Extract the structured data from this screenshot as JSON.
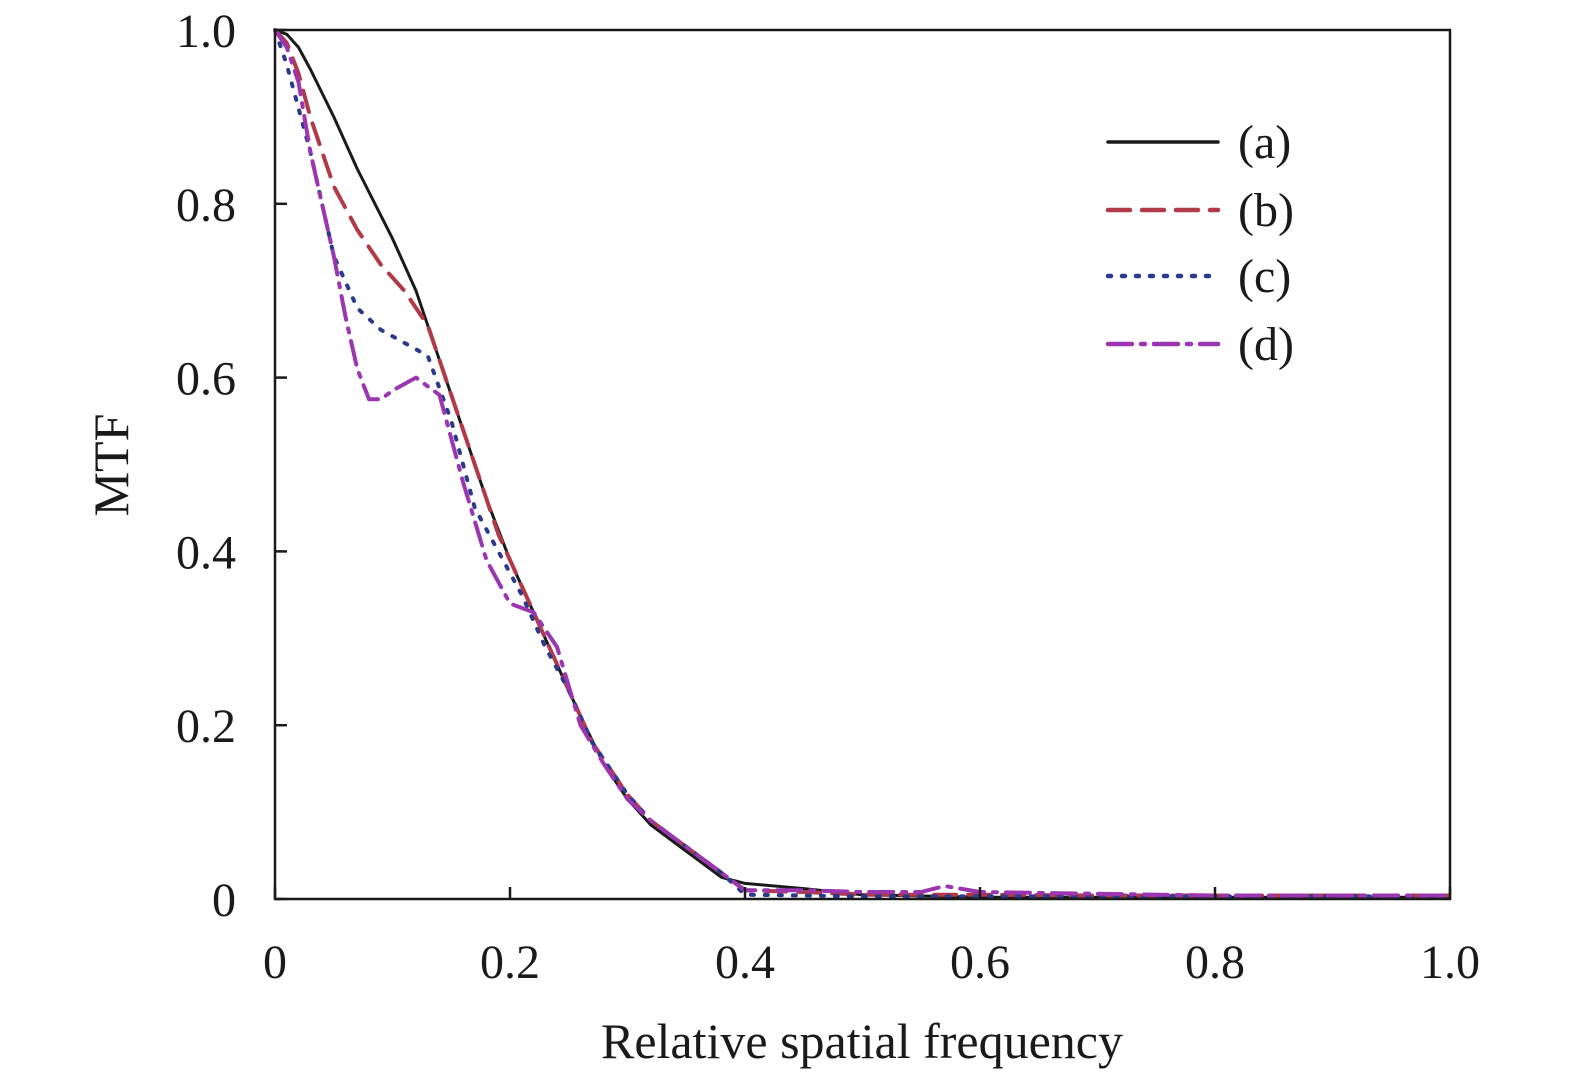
{
  "chart_data": {
    "type": "line",
    "xlabel": "Relative spatial frequency",
    "ylabel": "MTF",
    "xlim": [
      0,
      1.0
    ],
    "ylim": [
      0,
      1.0
    ],
    "xticks": [
      0,
      0.2,
      0.4,
      0.6,
      0.8,
      1.0
    ],
    "xtick_labels": [
      "0",
      "0.2",
      "0.4",
      "0.6",
      "0.8",
      "1.0"
    ],
    "yticks": [
      0,
      0.2,
      0.4,
      0.6,
      0.8,
      1.0
    ],
    "ytick_labels": [
      "0",
      "0.2",
      "0.4",
      "0.6",
      "0.8",
      "1.0"
    ],
    "grid": false,
    "legend_position": "top-right",
    "series": [
      {
        "name": "(a)",
        "color": "#1a1a1a",
        "style": "solid",
        "x": [
          0,
          0.01,
          0.02,
          0.03,
          0.05,
          0.07,
          0.1,
          0.12,
          0.14,
          0.16,
          0.18,
          0.2,
          0.22,
          0.24,
          0.26,
          0.28,
          0.3,
          0.32,
          0.34,
          0.36,
          0.38,
          0.4,
          0.45,
          0.5,
          0.6,
          0.7,
          0.8,
          0.9,
          1.0
        ],
        "y": [
          1.0,
          0.995,
          0.98,
          0.955,
          0.9,
          0.84,
          0.76,
          0.7,
          0.62,
          0.54,
          0.46,
          0.39,
          0.33,
          0.27,
          0.21,
          0.155,
          0.115,
          0.085,
          0.065,
          0.045,
          0.025,
          0.018,
          0.012,
          0.005,
          0.002,
          0.002,
          0.002,
          0.002,
          0.002
        ]
      },
      {
        "name": "(b)",
        "color": "#b03a48",
        "style": "dashed",
        "x": [
          0,
          0.01,
          0.02,
          0.03,
          0.05,
          0.07,
          0.09,
          0.11,
          0.13,
          0.15,
          0.17,
          0.19,
          0.21,
          0.23,
          0.25,
          0.27,
          0.3,
          0.32,
          0.34,
          0.36,
          0.38,
          0.4,
          0.45,
          0.5,
          0.6,
          0.7,
          0.8,
          0.9,
          1.0
        ],
        "y": [
          1.0,
          0.985,
          0.95,
          0.9,
          0.82,
          0.77,
          0.73,
          0.7,
          0.66,
          0.58,
          0.5,
          0.42,
          0.36,
          0.3,
          0.24,
          0.18,
          0.12,
          0.09,
          0.07,
          0.05,
          0.03,
          0.01,
          0.008,
          0.005,
          0.005,
          0.004,
          0.004,
          0.004,
          0.004
        ]
      },
      {
        "name": "(c)",
        "color": "#2b3a8c",
        "style": "dotted",
        "x": [
          0,
          0.01,
          0.02,
          0.03,
          0.05,
          0.07,
          0.09,
          0.11,
          0.13,
          0.15,
          0.17,
          0.19,
          0.21,
          0.23,
          0.25,
          0.27,
          0.3,
          0.32,
          0.34,
          0.36,
          0.38,
          0.4,
          0.45,
          0.5,
          0.6,
          0.7,
          0.8,
          0.9,
          1.0
        ],
        "y": [
          1.0,
          0.96,
          0.91,
          0.86,
          0.74,
          0.68,
          0.655,
          0.64,
          0.625,
          0.55,
          0.45,
          0.4,
          0.35,
          0.29,
          0.24,
          0.18,
          0.12,
          0.09,
          0.07,
          0.05,
          0.03,
          0.005,
          0.004,
          0.003,
          0.003,
          0.003,
          0.003,
          0.003,
          0.003
        ]
      },
      {
        "name": "(d)",
        "color": "#9b35b0",
        "style": "dashdot",
        "x": [
          0,
          0.01,
          0.02,
          0.03,
          0.04,
          0.05,
          0.06,
          0.07,
          0.08,
          0.09,
          0.1,
          0.12,
          0.14,
          0.16,
          0.18,
          0.2,
          0.22,
          0.24,
          0.26,
          0.28,
          0.3,
          0.32,
          0.34,
          0.36,
          0.38,
          0.4,
          0.45,
          0.5,
          0.55,
          0.57,
          0.6,
          0.7,
          0.8,
          0.9,
          1.0
        ],
        "y": [
          1.0,
          0.98,
          0.94,
          0.86,
          0.8,
          0.74,
          0.67,
          0.61,
          0.575,
          0.575,
          0.585,
          0.6,
          0.58,
          0.48,
          0.39,
          0.34,
          0.33,
          0.29,
          0.2,
          0.155,
          0.115,
          0.09,
          0.07,
          0.05,
          0.03,
          0.01,
          0.01,
          0.008,
          0.008,
          0.015,
          0.008,
          0.006,
          0.004,
          0.004,
          0.004
        ]
      }
    ]
  }
}
